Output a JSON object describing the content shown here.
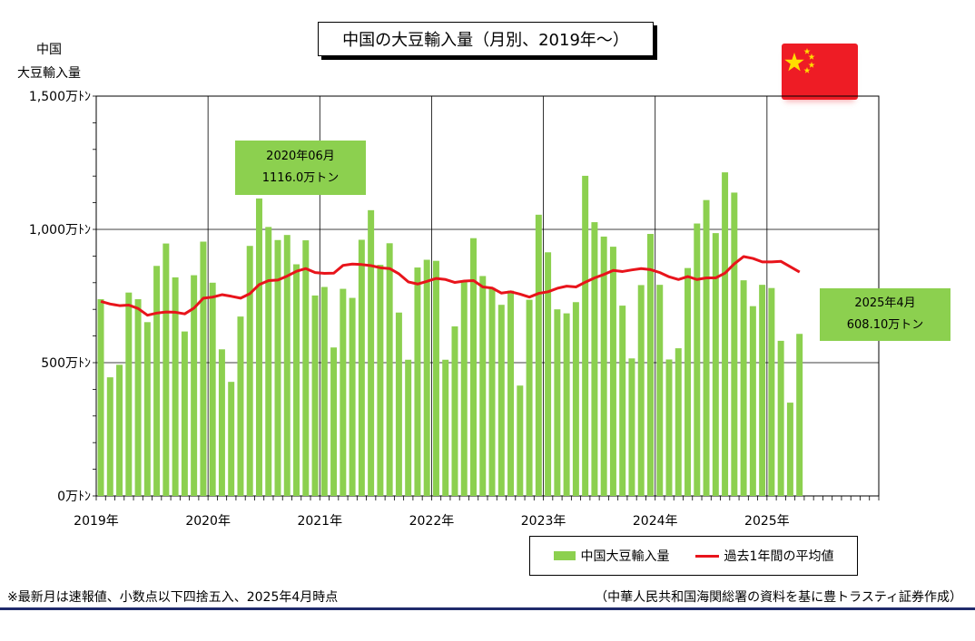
{
  "title": "中国の大豆輸入量（月別、2019年～）",
  "ylabel_lines": [
    "中国",
    "大豆輸入量"
  ],
  "colors": {
    "bar": "#8cd04f",
    "line": "#e8141b",
    "callout": "#8cd04f",
    "flag_red": "#ee1c25",
    "flag_star": "#ffde00"
  },
  "flag_icon": "china-flag-icon",
  "callouts": [
    {
      "line1": "2020年06月",
      "line2": "1116.0万トン"
    },
    {
      "line1": "2025年4月",
      "line2": "608.10万トン"
    }
  ],
  "legend": {
    "bar_label": "中国大豆輸入量",
    "line_label": "過去1年間の平均値"
  },
  "footnote": "※最新月は速報値、小数点以下四捨五入、2025年4月時点",
  "source": "（中華人民共和国海関総署の資料を基に豊トラスティ証券作成）",
  "chart_data": {
    "type": "bar",
    "start": "2019-01",
    "months_on_axis": 84,
    "ylim": [
      0,
      1500
    ],
    "yticks": [
      {
        "value": 0,
        "label": "0万ﾄﾝ"
      },
      {
        "value": 500,
        "label": "500万ﾄﾝ"
      },
      {
        "value": 1000,
        "label": "1,000万ﾄﾝ"
      },
      {
        "value": 1500,
        "label": "1,500万ﾄﾝ"
      }
    ],
    "xticks": [
      "2019年",
      "2020年",
      "2021年",
      "2022年",
      "2023年",
      "2024年",
      "2025年"
    ],
    "grid": true,
    "series": [
      {
        "name": "中国大豆輸入量",
        "type": "bar",
        "values": [
          738,
          445,
          492,
          763,
          738,
          652,
          863,
          947,
          820,
          617,
          828,
          954,
          800,
          550,
          428,
          673,
          938,
          1116,
          1009,
          960,
          979,
          869,
          959,
          752,
          784,
          557,
          777,
          743,
          961,
          1072,
          867,
          948,
          688,
          511,
          857,
          886,
          882,
          511,
          636,
          806,
          967,
          825,
          781,
          717,
          770,
          414,
          736,
          1055,
          914,
          700,
          685,
          727,
          1201,
          1027,
          973,
          935,
          714,
          516,
          791,
          983,
          792,
          512,
          554,
          855,
          1022,
          1110,
          986,
          1214,
          1138,
          809,
          712,
          792,
          780,
          582,
          350,
          608
        ]
      },
      {
        "name": "過去1年間の平均値",
        "type": "line",
        "values": [
          730,
          720,
          714,
          716,
          703,
          678,
          686,
          690,
          689,
          683,
          705,
          742,
          746,
          755,
          749,
          742,
          759,
          793,
          808,
          810,
          825,
          843,
          853,
          838,
          835,
          836,
          865,
          870,
          868,
          864,
          856,
          853,
          833,
          803,
          795,
          805,
          816,
          812,
          801,
          806,
          808,
          784,
          780,
          761,
          766,
          757,
          746,
          760,
          766,
          779,
          787,
          784,
          802,
          818,
          831,
          846,
          842,
          848,
          853,
          849,
          838,
          822,
          812,
          823,
          812,
          818,
          818,
          836,
          871,
          898,
          891,
          878,
          878,
          880,
          860,
          840
        ]
      }
    ]
  }
}
